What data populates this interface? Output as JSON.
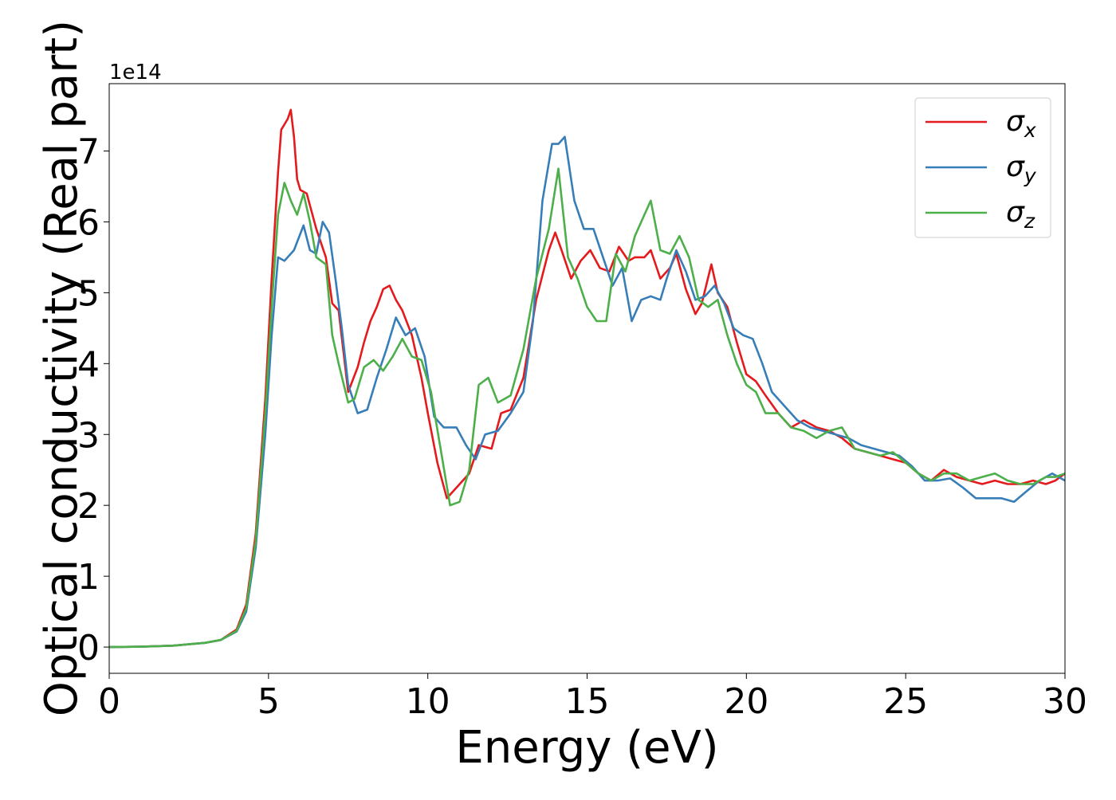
{
  "chart_data": {
    "type": "line",
    "title": "",
    "xlabel": "Energy (eV)",
    "ylabel": "Optical conductivity (Real part)",
    "y_offset_label": "1e14",
    "xlim": [
      0,
      30
    ],
    "ylim": [
      -0.37,
      7.95
    ],
    "xticks": [
      0,
      5,
      10,
      15,
      20,
      25,
      30
    ],
    "yticks": [
      0,
      1,
      2,
      3,
      4,
      5,
      6,
      7
    ],
    "grid": false,
    "legend_position": "top-right",
    "series": [
      {
        "name": "σx",
        "label_base": "σ",
        "label_sub": "x",
        "color": "#e41a1c",
        "points": [
          [
            0,
            0
          ],
          [
            1,
            0.005
          ],
          [
            2,
            0.02
          ],
          [
            3,
            0.06
          ],
          [
            3.5,
            0.1
          ],
          [
            4,
            0.25
          ],
          [
            4.3,
            0.6
          ],
          [
            4.6,
            1.6
          ],
          [
            4.9,
            3.5
          ],
          [
            5.1,
            5.2
          ],
          [
            5.3,
            6.7
          ],
          [
            5.4,
            7.3
          ],
          [
            5.6,
            7.45
          ],
          [
            5.7,
            7.58
          ],
          [
            5.8,
            7.2
          ],
          [
            5.9,
            6.6
          ],
          [
            6,
            6.45
          ],
          [
            6.2,
            6.4
          ],
          [
            6.5,
            5.9
          ],
          [
            6.8,
            5.5
          ],
          [
            7,
            4.85
          ],
          [
            7.2,
            4.75
          ],
          [
            7.5,
            3.6
          ],
          [
            7.8,
            3.95
          ],
          [
            8,
            4.3
          ],
          [
            8.2,
            4.6
          ],
          [
            8.4,
            4.8
          ],
          [
            8.6,
            5.05
          ],
          [
            8.8,
            5.1
          ],
          [
            9,
            4.9
          ],
          [
            9.2,
            4.75
          ],
          [
            9.5,
            4.4
          ],
          [
            9.8,
            3.8
          ],
          [
            10,
            3.3
          ],
          [
            10.3,
            2.6
          ],
          [
            10.6,
            2.1
          ],
          [
            10.9,
            2.25
          ],
          [
            11.3,
            2.45
          ],
          [
            11.6,
            2.85
          ],
          [
            12,
            2.8
          ],
          [
            12.3,
            3.3
          ],
          [
            12.6,
            3.35
          ],
          [
            13,
            3.8
          ],
          [
            13.4,
            4.9
          ],
          [
            13.8,
            5.6
          ],
          [
            14,
            5.85
          ],
          [
            14.2,
            5.6
          ],
          [
            14.5,
            5.2
          ],
          [
            14.8,
            5.45
          ],
          [
            15.1,
            5.6
          ],
          [
            15.4,
            5.35
          ],
          [
            15.7,
            5.3
          ],
          [
            16,
            5.65
          ],
          [
            16.3,
            5.45
          ],
          [
            16.5,
            5.5
          ],
          [
            16.8,
            5.5
          ],
          [
            17,
            5.6
          ],
          [
            17.3,
            5.2
          ],
          [
            17.6,
            5.35
          ],
          [
            17.8,
            5.55
          ],
          [
            18.1,
            5.05
          ],
          [
            18.4,
            4.7
          ],
          [
            18.6,
            4.85
          ],
          [
            18.9,
            5.4
          ],
          [
            19.1,
            5.0
          ],
          [
            19.4,
            4.8
          ],
          [
            19.7,
            4.3
          ],
          [
            20,
            3.85
          ],
          [
            20.3,
            3.75
          ],
          [
            20.6,
            3.55
          ],
          [
            21,
            3.3
          ],
          [
            21.4,
            3.1
          ],
          [
            21.8,
            3.2
          ],
          [
            22.2,
            3.1
          ],
          [
            22.6,
            3.05
          ],
          [
            23,
            2.95
          ],
          [
            23.4,
            2.8
          ],
          [
            23.8,
            2.75
          ],
          [
            24.2,
            2.7
          ],
          [
            24.6,
            2.65
          ],
          [
            25,
            2.6
          ],
          [
            25.4,
            2.45
          ],
          [
            25.8,
            2.35
          ],
          [
            26.2,
            2.5
          ],
          [
            26.6,
            2.4
          ],
          [
            27,
            2.35
          ],
          [
            27.4,
            2.3
          ],
          [
            27.8,
            2.35
          ],
          [
            28.2,
            2.3
          ],
          [
            28.6,
            2.3
          ],
          [
            29,
            2.35
          ],
          [
            29.4,
            2.3
          ],
          [
            29.7,
            2.35
          ],
          [
            30,
            2.45
          ]
        ]
      },
      {
        "name": "σy",
        "label_base": "σ",
        "label_sub": "y",
        "color": "#377eb8",
        "points": [
          [
            0,
            0
          ],
          [
            1,
            0.005
          ],
          [
            2,
            0.02
          ],
          [
            3,
            0.06
          ],
          [
            3.5,
            0.1
          ],
          [
            4,
            0.22
          ],
          [
            4.3,
            0.5
          ],
          [
            4.6,
            1.4
          ],
          [
            4.9,
            3.0
          ],
          [
            5.1,
            4.4
          ],
          [
            5.3,
            5.5
          ],
          [
            5.5,
            5.45
          ],
          [
            5.8,
            5.6
          ],
          [
            6.1,
            5.95
          ],
          [
            6.3,
            5.6
          ],
          [
            6.5,
            5.55
          ],
          [
            6.7,
            6.0
          ],
          [
            6.9,
            5.85
          ],
          [
            7.1,
            5.2
          ],
          [
            7.3,
            4.5
          ],
          [
            7.5,
            3.7
          ],
          [
            7.8,
            3.3
          ],
          [
            8.1,
            3.35
          ],
          [
            8.4,
            3.8
          ],
          [
            8.7,
            4.2
          ],
          [
            9,
            4.65
          ],
          [
            9.3,
            4.4
          ],
          [
            9.6,
            4.5
          ],
          [
            9.9,
            4.1
          ],
          [
            10.2,
            3.25
          ],
          [
            10.5,
            3.1
          ],
          [
            10.9,
            3.1
          ],
          [
            11.2,
            2.85
          ],
          [
            11.5,
            2.65
          ],
          [
            11.8,
            3.0
          ],
          [
            12.2,
            3.05
          ],
          [
            12.6,
            3.3
          ],
          [
            13,
            3.6
          ],
          [
            13.3,
            4.6
          ],
          [
            13.6,
            6.3
          ],
          [
            13.9,
            7.1
          ],
          [
            14.1,
            7.1
          ],
          [
            14.3,
            7.2
          ],
          [
            14.6,
            6.3
          ],
          [
            14.9,
            5.9
          ],
          [
            15.2,
            5.9
          ],
          [
            15.5,
            5.5
          ],
          [
            15.8,
            5.1
          ],
          [
            16.1,
            5.35
          ],
          [
            16.4,
            4.6
          ],
          [
            16.7,
            4.9
          ],
          [
            17,
            4.95
          ],
          [
            17.3,
            4.9
          ],
          [
            17.5,
            5.2
          ],
          [
            17.8,
            5.6
          ],
          [
            18.1,
            5.3
          ],
          [
            18.4,
            4.9
          ],
          [
            18.7,
            4.95
          ],
          [
            19,
            5.1
          ],
          [
            19.3,
            4.85
          ],
          [
            19.6,
            4.5
          ],
          [
            19.9,
            4.4
          ],
          [
            20.2,
            4.35
          ],
          [
            20.5,
            4.0
          ],
          [
            20.8,
            3.6
          ],
          [
            21.2,
            3.4
          ],
          [
            21.6,
            3.2
          ],
          [
            22,
            3.1
          ],
          [
            22.4,
            3.05
          ],
          [
            22.8,
            3.0
          ],
          [
            23.2,
            2.95
          ],
          [
            23.6,
            2.85
          ],
          [
            24,
            2.8
          ],
          [
            24.4,
            2.75
          ],
          [
            24.8,
            2.7
          ],
          [
            25.2,
            2.55
          ],
          [
            25.6,
            2.35
          ],
          [
            26,
            2.35
          ],
          [
            26.4,
            2.38
          ],
          [
            26.8,
            2.25
          ],
          [
            27.2,
            2.1
          ],
          [
            27.6,
            2.1
          ],
          [
            28,
            2.1
          ],
          [
            28.4,
            2.05
          ],
          [
            28.8,
            2.2
          ],
          [
            29.2,
            2.35
          ],
          [
            29.6,
            2.45
          ],
          [
            30,
            2.35
          ]
        ]
      },
      {
        "name": "σz",
        "label_base": "σ",
        "label_sub": "z",
        "color": "#4daf4a",
        "points": [
          [
            0,
            0
          ],
          [
            1,
            0.005
          ],
          [
            2,
            0.02
          ],
          [
            3,
            0.06
          ],
          [
            3.5,
            0.1
          ],
          [
            4,
            0.23
          ],
          [
            4.3,
            0.55
          ],
          [
            4.6,
            1.5
          ],
          [
            4.9,
            3.3
          ],
          [
            5.1,
            4.8
          ],
          [
            5.3,
            6.1
          ],
          [
            5.5,
            6.55
          ],
          [
            5.7,
            6.3
          ],
          [
            5.9,
            6.1
          ],
          [
            6.1,
            6.4
          ],
          [
            6.3,
            6.0
          ],
          [
            6.5,
            5.5
          ],
          [
            6.8,
            5.4
          ],
          [
            7,
            4.4
          ],
          [
            7.2,
            4.0
          ],
          [
            7.5,
            3.45
          ],
          [
            7.7,
            3.5
          ],
          [
            8,
            3.95
          ],
          [
            8.3,
            4.05
          ],
          [
            8.6,
            3.9
          ],
          [
            8.9,
            4.1
          ],
          [
            9.2,
            4.35
          ],
          [
            9.5,
            4.1
          ],
          [
            9.8,
            4.05
          ],
          [
            10.1,
            3.6
          ],
          [
            10.4,
            2.8
          ],
          [
            10.7,
            2.0
          ],
          [
            11,
            2.05
          ],
          [
            11.3,
            2.5
          ],
          [
            11.6,
            3.7
          ],
          [
            11.9,
            3.8
          ],
          [
            12.2,
            3.45
          ],
          [
            12.6,
            3.55
          ],
          [
            13,
            4.2
          ],
          [
            13.4,
            5.2
          ],
          [
            13.8,
            5.9
          ],
          [
            14.1,
            6.75
          ],
          [
            14.4,
            5.5
          ],
          [
            14.7,
            5.2
          ],
          [
            15,
            4.8
          ],
          [
            15.3,
            4.6
          ],
          [
            15.6,
            4.6
          ],
          [
            15.9,
            5.55
          ],
          [
            16.2,
            5.3
          ],
          [
            16.5,
            5.8
          ],
          [
            16.8,
            6.1
          ],
          [
            17,
            6.3
          ],
          [
            17.3,
            5.6
          ],
          [
            17.6,
            5.55
          ],
          [
            17.9,
            5.8
          ],
          [
            18.2,
            5.5
          ],
          [
            18.5,
            4.9
          ],
          [
            18.8,
            4.8
          ],
          [
            19.1,
            4.9
          ],
          [
            19.4,
            4.4
          ],
          [
            19.7,
            4.0
          ],
          [
            20,
            3.7
          ],
          [
            20.3,
            3.6
          ],
          [
            20.6,
            3.3
          ],
          [
            21,
            3.3
          ],
          [
            21.4,
            3.1
          ],
          [
            21.8,
            3.05
          ],
          [
            22.2,
            2.95
          ],
          [
            22.6,
            3.05
          ],
          [
            23,
            3.1
          ],
          [
            23.4,
            2.8
          ],
          [
            23.8,
            2.75
          ],
          [
            24.2,
            2.7
          ],
          [
            24.6,
            2.75
          ],
          [
            25,
            2.6
          ],
          [
            25.4,
            2.45
          ],
          [
            25.8,
            2.35
          ],
          [
            26.2,
            2.45
          ],
          [
            26.6,
            2.45
          ],
          [
            27,
            2.35
          ],
          [
            27.4,
            2.4
          ],
          [
            27.8,
            2.45
          ],
          [
            28.2,
            2.35
          ],
          [
            28.6,
            2.3
          ],
          [
            29,
            2.3
          ],
          [
            29.4,
            2.4
          ],
          [
            29.7,
            2.4
          ],
          [
            30,
            2.45
          ]
        ]
      }
    ]
  }
}
